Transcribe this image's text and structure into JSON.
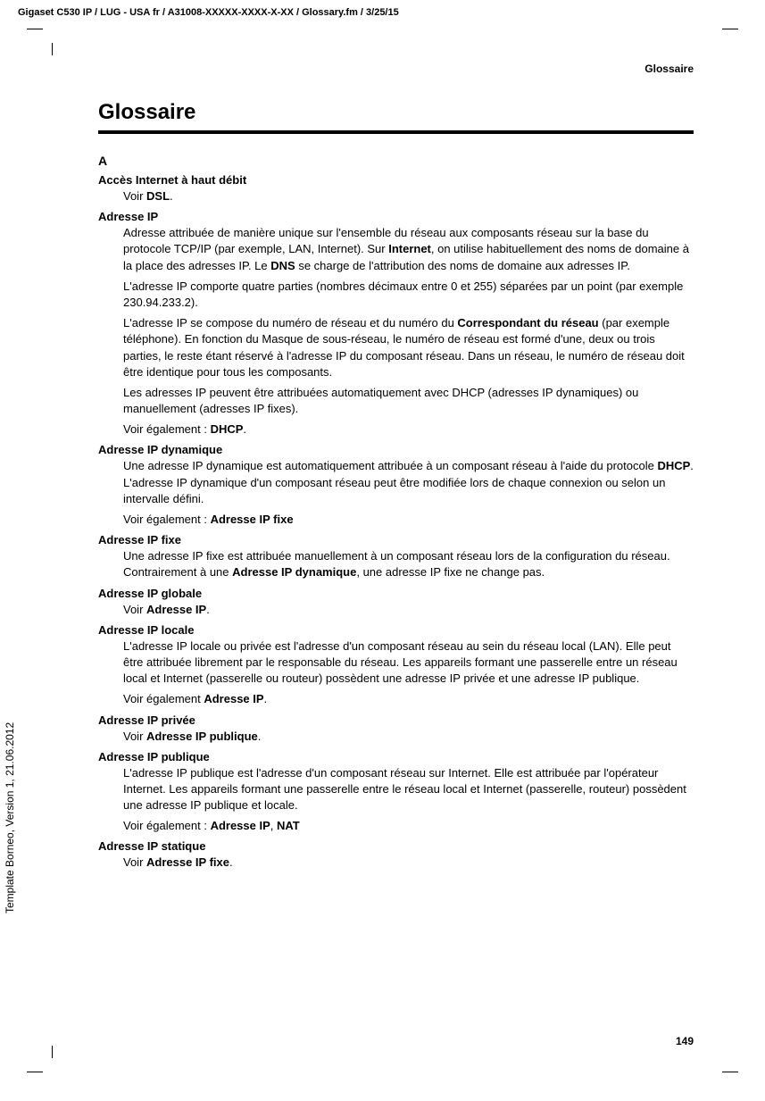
{
  "header_path": "Gigaset C530 IP / LUG - USA fr / A31008-XXXXX-XXXX-X-XX / Glossary.fm / 3/25/15",
  "rotated_label": "Template Borneo, Version 1, 21.06.2012",
  "section_label": "Glossaire",
  "page_title": "Glossaire",
  "letter": "A",
  "page_number": "149",
  "entries": [
    {
      "term": "Accès Internet à haut débit",
      "paras": [
        "Voir <b>DSL</b>."
      ]
    },
    {
      "term": "Adresse IP",
      "paras": [
        "Adresse attribuée de manière unique sur l'ensemble du réseau aux composants réseau sur la base du protocole TCP/IP (par exemple, LAN, Internet). Sur <b>Internet</b>, on utilise habituellement des noms de domaine à la place des adresses IP. Le <b>DNS</b> se charge de l'attribution des noms de domaine aux adresses IP.",
        "L'adresse IP comporte quatre parties (nombres décimaux entre 0 et 255) séparées par un point (par exemple 230.94.233.2).",
        "L'adresse IP se compose du numéro de réseau et du numéro du <b>Correspondant du réseau</b> (par exemple téléphone). En fonction du Masque de sous-réseau, le numéro de réseau est formé d'une, deux ou trois parties, le reste étant réservé à l'adresse IP du composant réseau. Dans un réseau, le numéro de réseau doit être identique pour tous les composants.",
        "Les adresses IP peuvent être attribuées automatiquement avec DHCP (adresses IP dynamiques) ou manuellement (adresses IP fixes).",
        "Voir également : <b>DHCP</b>."
      ]
    },
    {
      "term": "Adresse IP dynamique",
      "paras": [
        "Une adresse IP dynamique est automatiquement attribuée à un composant réseau à l'aide du protocole <b>DHCP</b>. L'adresse IP dynamique d'un composant réseau peut être modifiée lors de chaque connexion ou selon un intervalle défini.",
        "Voir également : <b>Adresse IP fixe</b>"
      ]
    },
    {
      "term": "Adresse IP fixe",
      "paras": [
        "Une adresse IP fixe est attribuée manuellement à un composant réseau lors de la configuration du réseau. Contrairement à une <b>Adresse IP dynamique</b>, une adresse IP fixe ne change pas."
      ]
    },
    {
      "term": "Adresse IP globale",
      "paras": [
        "Voir <b>Adresse IP</b>."
      ]
    },
    {
      "term": "Adresse IP locale",
      "paras": [
        "L'adresse IP locale ou privée est l'adresse d'un composant réseau au sein du réseau local (LAN). Elle peut être attribuée librement par le responsable du réseau. Les appareils formant une passerelle entre un réseau local et Internet (passerelle ou routeur) possèdent une adresse IP privée et une adresse IP publique.",
        "Voir également <b>Adresse IP</b>."
      ]
    },
    {
      "term": "Adresse IP privée",
      "paras": [
        "Voir <b>Adresse IP publique</b>."
      ]
    },
    {
      "term": "Adresse IP publique",
      "paras": [
        "L'adresse IP publique est l'adresse d'un composant réseau sur Internet. Elle est attribuée par l'opérateur Internet. Les appareils formant une passerelle entre le réseau local et Internet (passerelle, routeur) possèdent une adresse IP publique et locale.",
        "Voir également : <b>Adresse IP</b>, <b>NAT</b>"
      ]
    },
    {
      "term": "Adresse IP statique",
      "paras": [
        "Voir <b>Adresse IP fixe</b>."
      ]
    }
  ]
}
